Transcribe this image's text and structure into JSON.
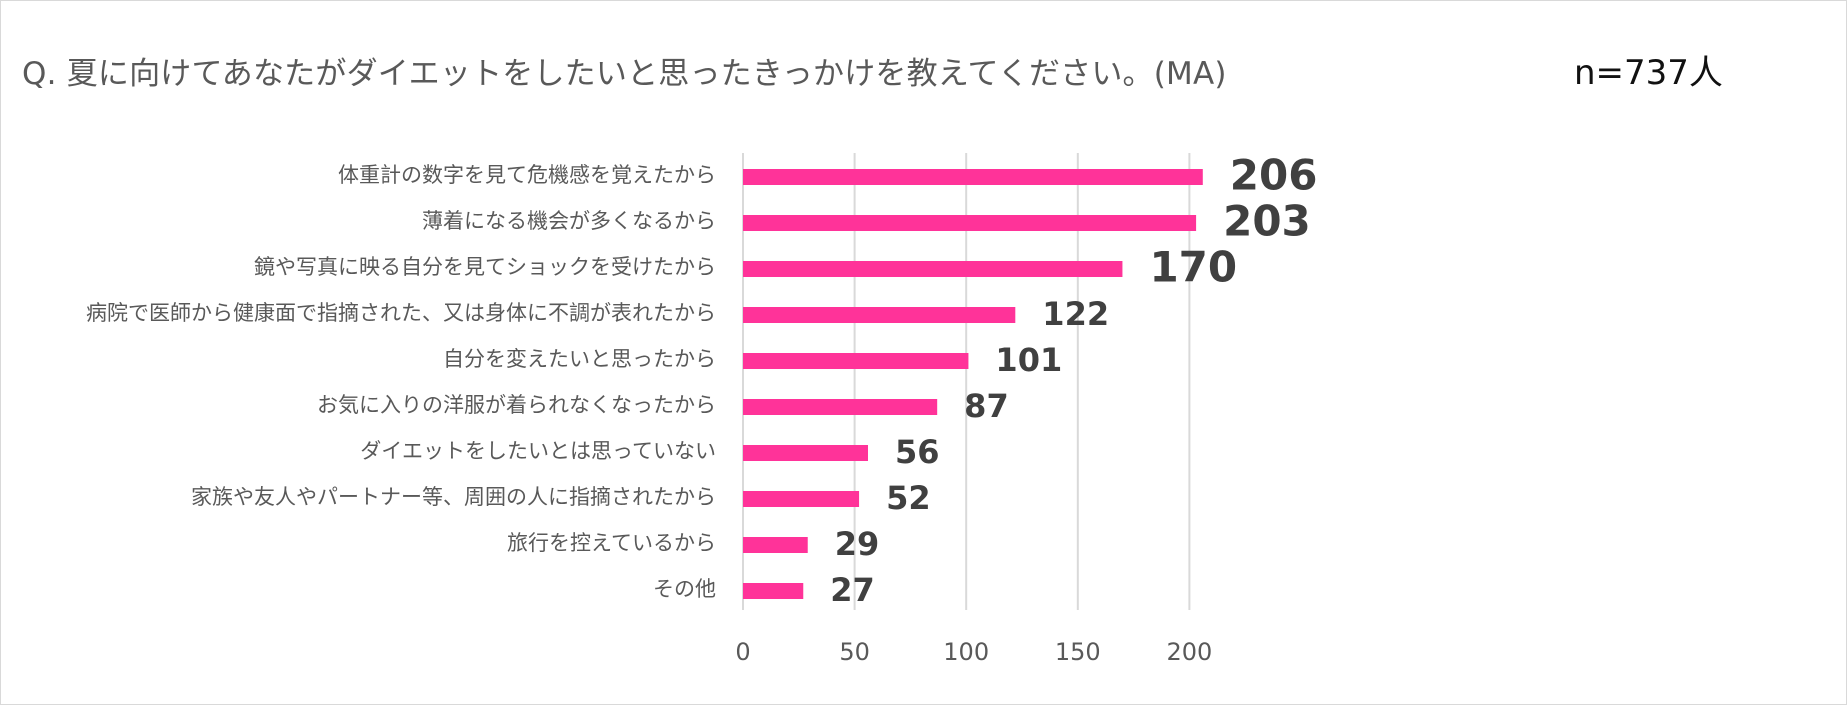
{
  "chart_data": {
    "type": "bar",
    "orientation": "horizontal",
    "title": "Q. 夏に向けてあなたがダイエットをしたいと思ったきっかけを教えてください。(MA)",
    "sample_size": "n=737人",
    "categories": [
      "体重計の数字を見て危機感を覚えたから",
      "薄着になる機会が多くなるから",
      "鏡や写真に映る自分を見てショックを受けたから",
      "病院で医師から健康面で指摘された、又は身体に不調が表れたから",
      "自分を変えたいと思ったから",
      "お気に入りの洋服が着られなくなったから",
      "ダイエットをしたいとは思っていない",
      "家族や友人やパートナー等、周囲の人に指摘されたから",
      "旅行を控えているから",
      "その他"
    ],
    "values": [
      206,
      203,
      170,
      122,
      101,
      87,
      56,
      52,
      29,
      27
    ],
    "value_labels": [
      "206",
      "203",
      "170",
      "122",
      "101",
      "87",
      "56",
      "52",
      "29",
      "27"
    ],
    "xlim": [
      0,
      220
    ],
    "xticks": [
      0,
      50,
      100,
      150,
      200
    ],
    "xtick_labels": [
      "0",
      "50",
      "100",
      "150",
      "200"
    ],
    "grid": true,
    "bar_color": "#ff3399",
    "grid_color": "#d9d9d9",
    "xlabel": "",
    "ylabel": ""
  }
}
